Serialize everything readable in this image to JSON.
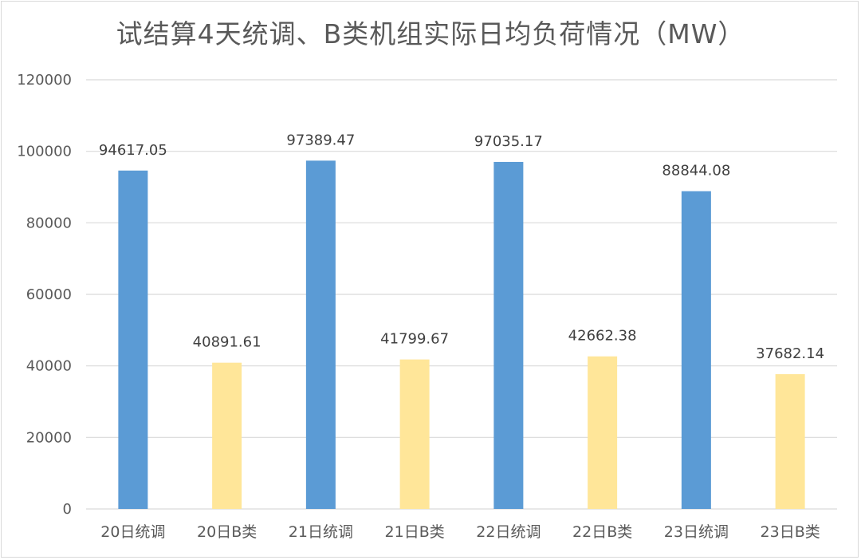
{
  "chart_data": {
    "type": "bar",
    "title": "试结算4天统调、B类机组实际日均负荷情况（MW）",
    "categories": [
      "20日统调",
      "20日B类",
      "21日统调",
      "21日B类",
      "22日统调",
      "22日B类",
      "23日统调",
      "23日B类"
    ],
    "values": [
      94617.05,
      40891.61,
      97389.47,
      41799.67,
      97035.17,
      42662.38,
      88844.08,
      37682.14
    ],
    "data_labels": [
      "94617.05",
      "40891.61",
      "97389.47",
      "41799.67",
      "97035.17",
      "42662.38",
      "88844.08",
      "37682.14"
    ],
    "bar_colors": [
      "#5b9bd5",
      "#ffe699",
      "#5b9bd5",
      "#ffe699",
      "#5b9bd5",
      "#ffe699",
      "#5b9bd5",
      "#ffe699"
    ],
    "y_ticks": [
      "0",
      "20000",
      "40000",
      "60000",
      "80000",
      "100000",
      "120000"
    ],
    "ylim": [
      0,
      120000
    ],
    "xlabel": "",
    "ylabel": "",
    "grid": true,
    "legend": "none"
  },
  "colors": {
    "grid": "#d9d9d9",
    "axis": "#d9d9d9"
  }
}
